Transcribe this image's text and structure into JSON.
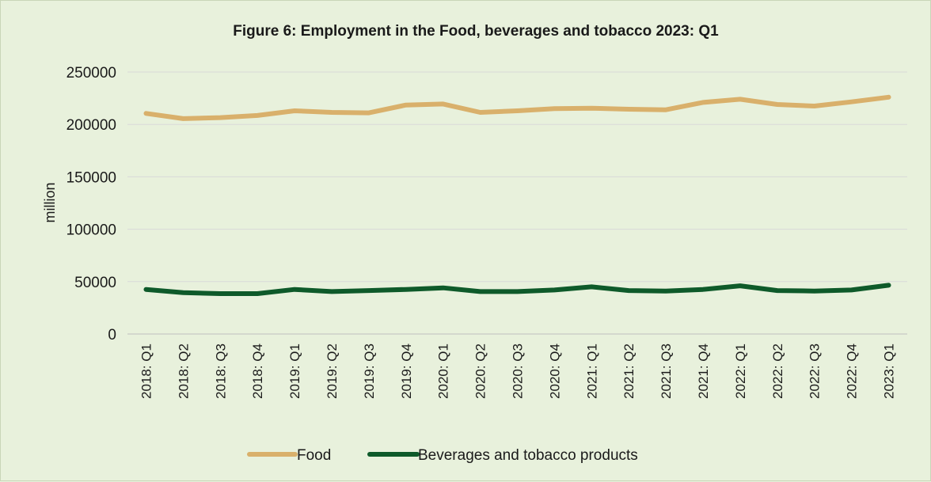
{
  "chart_data": {
    "type": "line",
    "title": "Figure 6: Employment in the Food, beverages and tobacco 2023: Q1",
    "ylabel": "million",
    "xlabel": "",
    "ylim": [
      0,
      250000
    ],
    "yticks": [
      0,
      50000,
      100000,
      150000,
      200000,
      250000
    ],
    "grid": true,
    "legend_position": "bottom",
    "categories": [
      "2018: Q1",
      "2018: Q2",
      "2018: Q3",
      "2018: Q4",
      "2019: Q1",
      "2019: Q2",
      "2019: Q3",
      "2019: Q4",
      "2020: Q1",
      "2020: Q2",
      "2020: Q3",
      "2020: Q4",
      "2021: Q1",
      "2021: Q2",
      "2021: Q3",
      "2021: Q4",
      "2022: Q1",
      "2022: Q2",
      "2022: Q3",
      "2022: Q4",
      "2023: Q1"
    ],
    "series": [
      {
        "name": "Food",
        "color": "#d9b06b",
        "values": [
          210500,
          205500,
          206500,
          208500,
          213000,
          211500,
          211000,
          218500,
          219500,
          211500,
          213000,
          215000,
          215500,
          214500,
          214000,
          221000,
          224000,
          219000,
          217500,
          221500,
          226000
        ]
      },
      {
        "name": "Beverages and tobacco products",
        "color": "#0e5a2a",
        "values": [
          42500,
          39500,
          38500,
          38500,
          42500,
          40500,
          41500,
          42500,
          44000,
          40500,
          40500,
          42000,
          45000,
          41500,
          41000,
          42500,
          46000,
          41500,
          41000,
          42000,
          46500
        ]
      }
    ]
  }
}
